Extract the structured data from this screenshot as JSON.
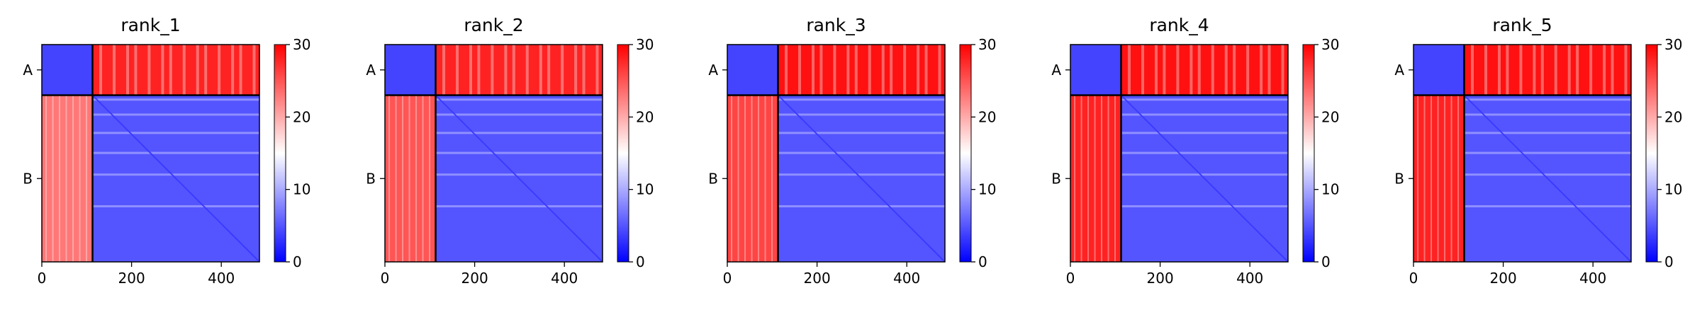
{
  "chart_data": [
    {
      "type": "heatmap",
      "title": "rank_1",
      "x_range": [
        0,
        485
      ],
      "y_range": [
        0,
        485
      ],
      "x_ticks": [
        0,
        200,
        400
      ],
      "y_categories": [
        "A",
        "B"
      ],
      "chain_boundary": 113,
      "colorbar": {
        "min": 0,
        "max": 30,
        "ticks": [
          0,
          10,
          20,
          30
        ],
        "colormap": "bwr"
      },
      "block_values": {
        "A-A": 4,
        "A-B": 28,
        "B-A": 23,
        "B-B": 5
      }
    },
    {
      "type": "heatmap",
      "title": "rank_2",
      "x_range": [
        0,
        485
      ],
      "y_range": [
        0,
        485
      ],
      "x_ticks": [
        0,
        200,
        400
      ],
      "y_categories": [
        "A",
        "B"
      ],
      "chain_boundary": 113,
      "colorbar": {
        "min": 0,
        "max": 30,
        "ticks": [
          0,
          10,
          20,
          30
        ],
        "colormap": "bwr"
      },
      "block_values": {
        "A-A": 4,
        "A-B": 28,
        "B-A": 25,
        "B-B": 5
      }
    },
    {
      "type": "heatmap",
      "title": "rank_3",
      "x_range": [
        0,
        485
      ],
      "y_range": [
        0,
        485
      ],
      "x_ticks": [
        0,
        200,
        400
      ],
      "y_categories": [
        "A",
        "B"
      ],
      "chain_boundary": 113,
      "colorbar": {
        "min": 0,
        "max": 30,
        "ticks": [
          0,
          10,
          20,
          30
        ],
        "colormap": "bwr"
      },
      "block_values": {
        "A-A": 4,
        "A-B": 29,
        "B-A": 26,
        "B-B": 5
      }
    },
    {
      "type": "heatmap",
      "title": "rank_4",
      "x_range": [
        0,
        485
      ],
      "y_range": [
        0,
        485
      ],
      "x_ticks": [
        0,
        200,
        400
      ],
      "y_categories": [
        "A",
        "B"
      ],
      "chain_boundary": 113,
      "colorbar": {
        "min": 0,
        "max": 30,
        "ticks": [
          0,
          10,
          20,
          30
        ],
        "colormap": "bwr"
      },
      "block_values": {
        "A-A": 4,
        "A-B": 29,
        "B-A": 28,
        "B-B": 5
      }
    },
    {
      "type": "heatmap",
      "title": "rank_5",
      "x_range": [
        0,
        485
      ],
      "y_range": [
        0,
        485
      ],
      "x_ticks": [
        0,
        200,
        400
      ],
      "y_categories": [
        "A",
        "B"
      ],
      "chain_boundary": 113,
      "colorbar": {
        "min": 0,
        "max": 30,
        "ticks": [
          0,
          10,
          20,
          30
        ],
        "colormap": "bwr"
      },
      "block_values": {
        "A-A": 4,
        "A-B": 29,
        "B-A": 28,
        "B-B": 5
      }
    }
  ]
}
